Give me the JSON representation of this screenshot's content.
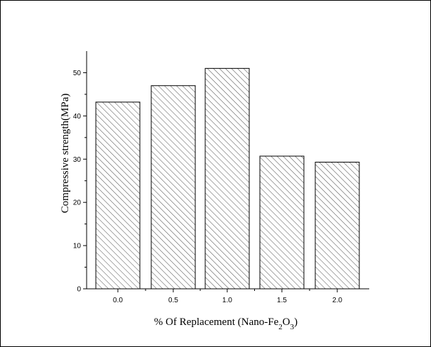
{
  "chart_data": {
    "type": "bar",
    "title": "",
    "categories": [
      "0.0",
      "0.5",
      "1.0",
      "1.5",
      "2.0"
    ],
    "values": [
      43.2,
      47.0,
      51.0,
      30.7,
      29.3
    ],
    "xlabel_parts": {
      "prefix": "% Of Replacement (Nano-Fe",
      "sub1": "2",
      "mid": "O",
      "sub2": "3",
      "suffix": ")"
    },
    "ylabel": "Compressive strength(MPa)",
    "ylim": [
      0,
      55
    ],
    "yticks": [
      "0",
      "10",
      "20",
      "30",
      "40",
      "50"
    ],
    "grid": false,
    "legend": "none",
    "colors": {
      "bar_fill": "#ffffff",
      "bar_hatch": "#000000",
      "axis": "#000000"
    }
  }
}
